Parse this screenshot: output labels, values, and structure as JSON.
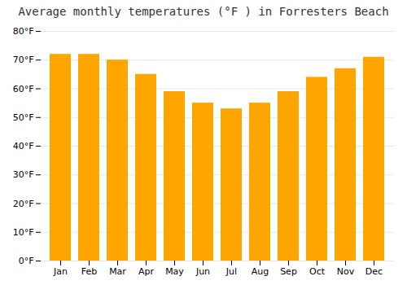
{
  "chart_data": {
    "type": "bar",
    "title": "Average monthly temperatures (°F ) in Forresters Beach",
    "categories": [
      "Jan",
      "Feb",
      "Mar",
      "Apr",
      "May",
      "Jun",
      "Jul",
      "Aug",
      "Sep",
      "Oct",
      "Nov",
      "Dec"
    ],
    "values": [
      72,
      72,
      70,
      65,
      59,
      55,
      53,
      55,
      59,
      64,
      67,
      71
    ],
    "color": "#FFA500",
    "ylim": [
      0,
      80
    ],
    "yticks": [
      {
        "value": 0,
        "label": "0°F"
      },
      {
        "value": 10,
        "label": "10°F"
      },
      {
        "value": 20,
        "label": "20°F"
      },
      {
        "value": 30,
        "label": "30°F"
      },
      {
        "value": 40,
        "label": "40°F"
      },
      {
        "value": 50,
        "label": "50°F"
      },
      {
        "value": 60,
        "label": "60°F"
      },
      {
        "value": 70,
        "label": "70°F"
      },
      {
        "value": 80,
        "label": "80°F"
      }
    ],
    "grid": true
  }
}
